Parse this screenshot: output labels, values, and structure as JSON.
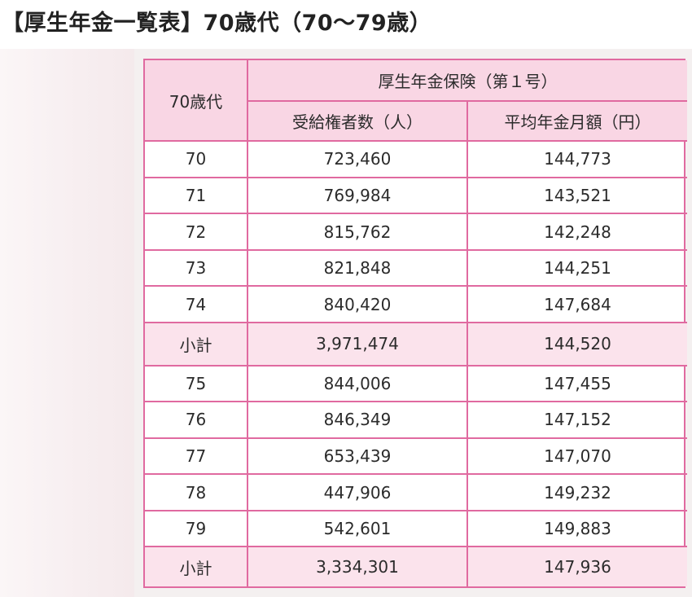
{
  "title": "【厚生年金一覧表】70歳代（70〜79歳）",
  "table": {
    "age_header": "70歳代",
    "group_header": "厚生年金保険（第１号）",
    "col_recipients": "受給権者数（人）",
    "col_average": "平均年金月額（円）",
    "rows": [
      {
        "age": "70",
        "recipients": "723,460",
        "average": "144,773"
      },
      {
        "age": "71",
        "recipients": "769,984",
        "average": "143,521"
      },
      {
        "age": "72",
        "recipients": "815,762",
        "average": "142,248"
      },
      {
        "age": "73",
        "recipients": "821,848",
        "average": "144,251"
      },
      {
        "age": "74",
        "recipients": "840,420",
        "average": "147,684"
      },
      {
        "age": "小計",
        "recipients": "3,971,474",
        "average": "144,520"
      },
      {
        "age": "75",
        "recipients": "844,006",
        "average": "147,455"
      },
      {
        "age": "76",
        "recipients": "846,349",
        "average": "147,152"
      },
      {
        "age": "77",
        "recipients": "653,439",
        "average": "147,070"
      },
      {
        "age": "78",
        "recipients": "447,906",
        "average": "149,232"
      },
      {
        "age": "79",
        "recipients": "542,601",
        "average": "149,883"
      },
      {
        "age": "小計",
        "recipients": "3,334,301",
        "average": "147,936"
      }
    ]
  },
  "colors": {
    "border": "#e06aa0",
    "header_fill": "#f9d6e4",
    "subtotal_fill": "#fbe3ec"
  }
}
